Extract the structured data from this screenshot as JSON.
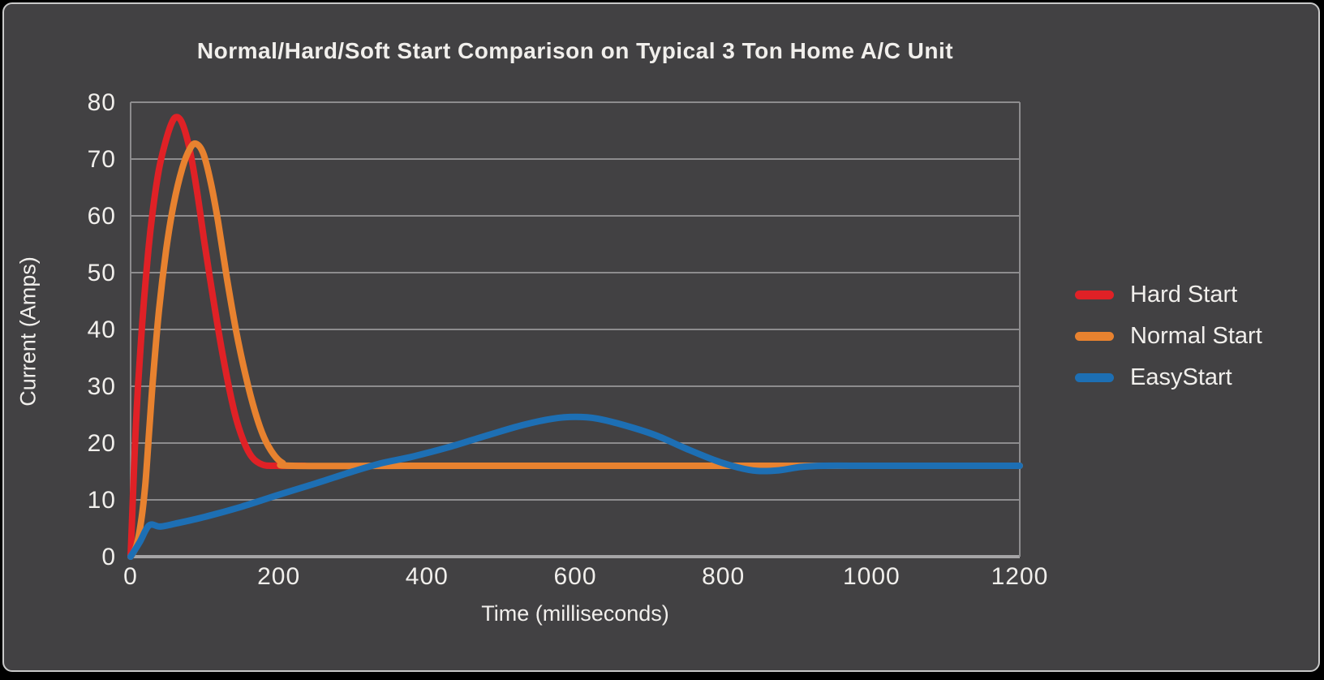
{
  "card": {
    "page_background": "#000000",
    "background": "#424143",
    "border_color": "#c9c9c9"
  },
  "chart_data": {
    "type": "line",
    "title": "Normal/Hard/Soft Start Comparison on Typical 3 Ton Home A/C Unit",
    "xlabel": "Time (milliseconds)",
    "ylabel": "Current (Amps)",
    "xlim": [
      0,
      1200
    ],
    "ylim": [
      0,
      80
    ],
    "x_ticks": [
      0,
      200,
      400,
      600,
      800,
      1000,
      1200
    ],
    "y_ticks": [
      0,
      10,
      20,
      30,
      40,
      50,
      60,
      70,
      80
    ],
    "grid": "horizontal-only",
    "legend_position": "right-of-plot",
    "colors": {
      "text": "#f1efec",
      "gridline": "#8d8c8e",
      "axis_line": "#a5a4a6"
    },
    "series": [
      {
        "name": "Hard Start",
        "color": "#e02126",
        "points": [
          [
            0,
            0
          ],
          [
            3,
            10
          ],
          [
            6,
            20
          ],
          [
            10,
            30
          ],
          [
            14,
            38
          ],
          [
            18,
            45
          ],
          [
            24,
            54
          ],
          [
            30,
            61
          ],
          [
            38,
            68
          ],
          [
            46,
            72.5
          ],
          [
            55,
            76.2
          ],
          [
            62,
            77.4
          ],
          [
            70,
            76.2
          ],
          [
            80,
            71.5
          ],
          [
            90,
            64
          ],
          [
            100,
            55
          ],
          [
            112,
            45
          ],
          [
            125,
            35
          ],
          [
            140,
            25.5
          ],
          [
            152,
            20.5
          ],
          [
            164,
            17.5
          ],
          [
            178,
            16.2
          ],
          [
            195,
            16
          ],
          [
            235,
            16
          ]
        ]
      },
      {
        "name": "Normal Start",
        "color": "#e8822f",
        "points": [
          [
            0,
            0
          ],
          [
            8,
            2
          ],
          [
            15,
            7
          ],
          [
            20,
            13
          ],
          [
            25,
            22
          ],
          [
            30,
            31
          ],
          [
            38,
            43
          ],
          [
            48,
            54
          ],
          [
            58,
            62
          ],
          [
            70,
            68.5
          ],
          [
            80,
            71.8
          ],
          [
            88,
            72.7
          ],
          [
            98,
            71
          ],
          [
            108,
            66
          ],
          [
            118,
            59
          ],
          [
            130,
            49
          ],
          [
            142,
            40
          ],
          [
            155,
            32
          ],
          [
            168,
            25.5
          ],
          [
            180,
            21
          ],
          [
            193,
            18
          ],
          [
            205,
            16.5
          ],
          [
            220,
            16
          ],
          [
            400,
            16
          ],
          [
            700,
            16
          ],
          [
            1000,
            16
          ],
          [
            1200,
            16
          ]
        ]
      },
      {
        "name": "EasyStart",
        "color": "#1d6fb4",
        "points": [
          [
            0,
            0
          ],
          [
            12,
            2.5
          ],
          [
            25,
            5.5
          ],
          [
            40,
            5.3
          ],
          [
            60,
            5.8
          ],
          [
            100,
            7
          ],
          [
            150,
            8.8
          ],
          [
            200,
            10.9
          ],
          [
            250,
            12.9
          ],
          [
            300,
            15
          ],
          [
            340,
            16.5
          ],
          [
            380,
            17.6
          ],
          [
            430,
            19.3
          ],
          [
            480,
            21.3
          ],
          [
            530,
            23.2
          ],
          [
            570,
            24.3
          ],
          [
            600,
            24.6
          ],
          [
            630,
            24.3
          ],
          [
            670,
            23
          ],
          [
            710,
            21.3
          ],
          [
            750,
            19
          ],
          [
            790,
            16.9
          ],
          [
            820,
            15.7
          ],
          [
            845,
            15.1
          ],
          [
            875,
            15.2
          ],
          [
            905,
            15.8
          ],
          [
            935,
            16
          ],
          [
            1000,
            16
          ],
          [
            1100,
            16
          ],
          [
            1200,
            16
          ]
        ]
      }
    ]
  }
}
